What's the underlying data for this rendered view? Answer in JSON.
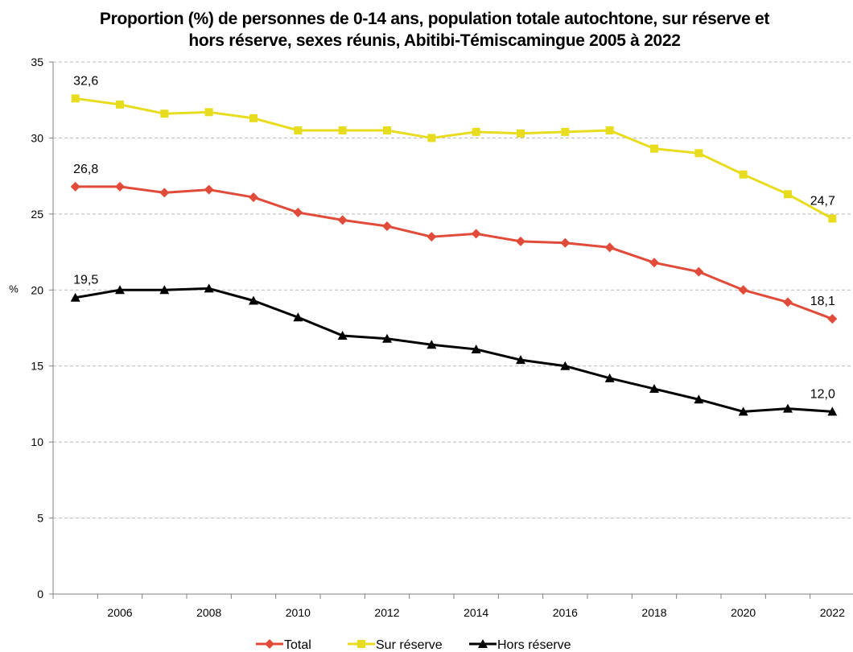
{
  "chart_data": {
    "type": "line",
    "title_line1": "Proportion (%) de personnes de 0-14 ans, population totale autochtone, sur réserve et",
    "title_line2": "hors réserve, sexes réunis, Abitibi-Témiscamingue 2005 à 2022",
    "ylabel": "%",
    "xlabel": "",
    "ylim": [
      0,
      35
    ],
    "yticks": [
      0,
      5,
      10,
      15,
      20,
      25,
      30,
      35
    ],
    "x": [
      2005,
      2006,
      2007,
      2008,
      2009,
      2010,
      2011,
      2012,
      2013,
      2014,
      2015,
      2016,
      2017,
      2018,
      2019,
      2020,
      2021,
      2022
    ],
    "xtick_labels": [
      "2006",
      "2008",
      "2010",
      "2012",
      "2014",
      "2016",
      "2018",
      "2020",
      "2022"
    ],
    "grid": "horizontal dashed",
    "legend_position": "bottom",
    "series": [
      {
        "name": "Total",
        "color": "#E04B3A",
        "marker": "diamond",
        "values": [
          26.8,
          26.8,
          26.4,
          26.6,
          26.1,
          25.1,
          24.6,
          24.2,
          23.5,
          23.7,
          23.2,
          23.1,
          22.8,
          21.8,
          21.2,
          20.0,
          19.2,
          18.1
        ],
        "labels": [
          {
            "index": 0,
            "text": "26,8"
          },
          {
            "index": 17,
            "text": "18,1"
          }
        ]
      },
      {
        "name": "Sur réserve",
        "color": "#E8DC1E",
        "marker": "square",
        "values": [
          32.6,
          32.2,
          31.6,
          31.7,
          31.3,
          30.5,
          30.5,
          30.5,
          30.0,
          30.4,
          30.3,
          30.4,
          30.5,
          29.3,
          29.0,
          27.6,
          26.3,
          24.7
        ],
        "labels": [
          {
            "index": 0,
            "text": "32,6"
          },
          {
            "index": 17,
            "text": "24,7"
          }
        ]
      },
      {
        "name": "Hors réserve",
        "color": "#000000",
        "marker": "triangle",
        "values": [
          19.5,
          20.0,
          20.0,
          20.1,
          19.3,
          18.2,
          17.0,
          16.8,
          16.4,
          16.1,
          15.4,
          15.0,
          14.2,
          13.5,
          12.8,
          12.0,
          12.2,
          12.0
        ],
        "labels": [
          {
            "index": 0,
            "text": "19,5"
          },
          {
            "index": 17,
            "text": "12,0"
          }
        ]
      }
    ]
  }
}
